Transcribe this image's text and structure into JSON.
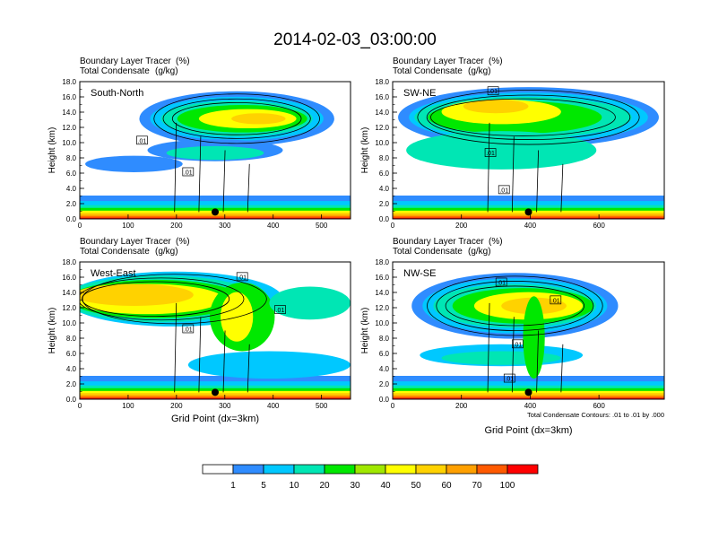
{
  "figure_title": "2014-02-03_03:00:00",
  "colors": {
    "levels": [
      "#ffffff",
      "#2f8cff",
      "#00c8ff",
      "#00e6b4",
      "#00e800",
      "#a0e800",
      "#ffff00",
      "#ffd200",
      "#ffa000",
      "#ff5a00",
      "#ff0000"
    ]
  },
  "colorbar": {
    "labels": [
      "1",
      "5",
      "10",
      "20",
      "30",
      "40",
      "50",
      "60",
      "70",
      "100"
    ]
  },
  "chart_data": [
    {
      "type": "heatmap",
      "panel_key": "sn",
      "region_label": "South-North",
      "title_line1": "Boundary Layer Tracer",
      "unit_line1": "(%)",
      "title_line2": "Total Condensate",
      "unit_line2": "(g/kg)",
      "ylabel": "Height (km)",
      "xlabel": "",
      "xlim": [
        0,
        560
      ],
      "ylim": [
        0,
        18
      ],
      "xticks": [
        "0",
        "100",
        "200",
        "300",
        "400",
        "500"
      ],
      "yticks": [
        "0.0",
        "2.0",
        "4.0",
        "6.0",
        "8.0",
        "10.0",
        "12.0",
        "14.0",
        "16.0",
        "18.0"
      ],
      "contour_labels": [
        ".01",
        ".01"
      ],
      "marker": {
        "x": 280,
        "y": 0.9
      },
      "note": ""
    },
    {
      "type": "heatmap",
      "panel_key": "swne",
      "region_label": "SW-NE",
      "title_line1": "Boundary Layer Tracer",
      "unit_line1": "(%)",
      "title_line2": "Total Condensate",
      "unit_line2": "(g/kg)",
      "ylabel": "Height (km)",
      "xlabel": "",
      "xlim": [
        0,
        790
      ],
      "ylim": [
        0,
        18
      ],
      "xticks": [
        "0",
        "200",
        "400",
        "600"
      ],
      "yticks": [
        "0.0",
        "2.0",
        "4.0",
        "6.0",
        "8.0",
        "10.0",
        "12.0",
        "14.0",
        "16.0",
        "18.0"
      ],
      "contour_labels": [
        ".01",
        ".01",
        ".01"
      ],
      "marker": {
        "x": 395,
        "y": 0.9
      },
      "note": ""
    },
    {
      "type": "heatmap",
      "panel_key": "we",
      "region_label": "West-East",
      "title_line1": "Boundary Layer Tracer",
      "unit_line1": "(%)",
      "title_line2": "Total Condensate",
      "unit_line2": "(g/kg)",
      "ylabel": "Height (km)",
      "xlabel": "Grid Point (dx=3km)",
      "xlim": [
        0,
        560
      ],
      "ylim": [
        0,
        18
      ],
      "xticks": [
        "0",
        "100",
        "200",
        "300",
        "400",
        "500"
      ],
      "yticks": [
        "0.0",
        "2.0",
        "4.0",
        "6.0",
        "8.0",
        "10.0",
        "12.0",
        "14.0",
        "16.0",
        "18.0"
      ],
      "contour_labels": [
        ".01",
        ".01",
        ".01"
      ],
      "marker": {
        "x": 280,
        "y": 0.9
      },
      "note": ""
    },
    {
      "type": "heatmap",
      "panel_key": "nwse",
      "region_label": "NW-SE",
      "title_line1": "Boundary Layer Tracer",
      "unit_line1": "(%)",
      "title_line2": "Total Condensate",
      "unit_line2": "(g/kg)",
      "ylabel": "Height (km)",
      "xlabel": "Grid Point (dx=3km)",
      "xlim": [
        0,
        790
      ],
      "ylim": [
        0,
        18
      ],
      "xticks": [
        "0",
        "200",
        "400",
        "600"
      ],
      "yticks": [
        "0.0",
        "2.0",
        "4.0",
        "6.0",
        "8.0",
        "10.0",
        "12.0",
        "14.0",
        "16.0",
        "18.0"
      ],
      "contour_labels": [
        ".01",
        ".01",
        ".01",
        ".01"
      ],
      "marker": {
        "x": 395,
        "y": 0.9
      },
      "note": "Total Condensate Contours: .01 to .01 by .000"
    }
  ]
}
